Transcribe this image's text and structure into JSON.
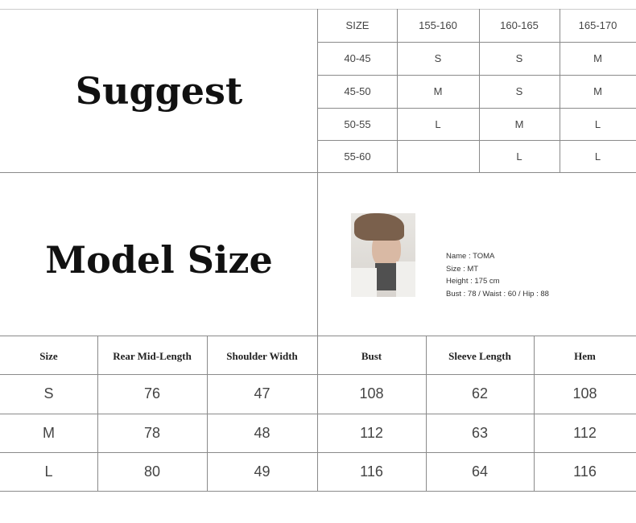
{
  "suggest": {
    "title": "Suggest",
    "headers": [
      "SIZE",
      "155-160",
      "160-165",
      "165-170"
    ],
    "rows": [
      [
        "40-45",
        "S",
        "S",
        "M"
      ],
      [
        "45-50",
        "M",
        "S",
        "M"
      ],
      [
        "50-55",
        "L",
        "M",
        "L"
      ],
      [
        "55-60",
        "",
        "L",
        "L"
      ]
    ]
  },
  "model": {
    "title": "Model Size",
    "name": "Name : TOMA",
    "size": "Size : MT",
    "height": "Height : 175 cm",
    "measure": "Bust : 78 / Waist : 60 / Hip : 88"
  },
  "size_table": {
    "headers": [
      "Size",
      "Rear Mid-Length",
      "Shoulder Width",
      "Bust",
      "Sleeve Length",
      "Hem"
    ],
    "rows": [
      [
        "S",
        "76",
        "47",
        "108",
        "62",
        "108"
      ],
      [
        "M",
        "78",
        "48",
        "112",
        "63",
        "112"
      ],
      [
        "L",
        "80",
        "49",
        "116",
        "64",
        "116"
      ]
    ]
  }
}
